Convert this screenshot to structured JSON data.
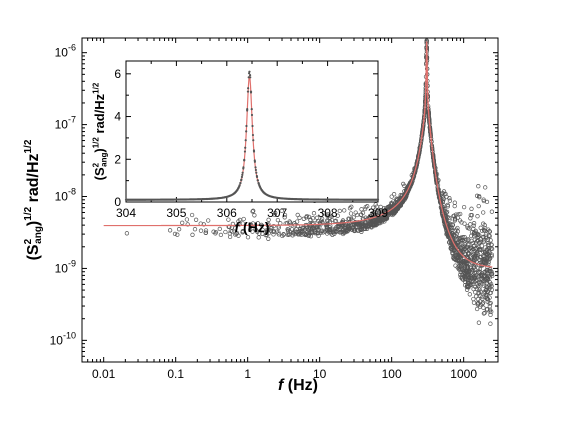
{
  "chart_data": [
    {
      "type": "scatter",
      "title": "",
      "xscale": "log",
      "yscale": "log",
      "xlim": [
        0.005,
        3000
      ],
      "ylim": [
        5e-11,
        1.6e-06
      ],
      "xlabel": {
        "italic": "f",
        "rest": " (Hz)"
      },
      "ylabel": {
        "base": "(S",
        "sup1": "2",
        "sub": "ang",
        "close": ")",
        "sup2": "1/2",
        "rest": " rad/Hz",
        "sup3": "1/2"
      },
      "xticks": [
        {
          "v": 0.01,
          "label": "0.01"
        },
        {
          "v": 0.1,
          "label": "0.1"
        },
        {
          "v": 1,
          "label": "1"
        },
        {
          "v": 10,
          "label": "10"
        },
        {
          "v": 100,
          "label": "100"
        },
        {
          "v": 1000,
          "label": "1000"
        }
      ],
      "yticks": [
        {
          "v": 1e-10,
          "mant": "10",
          "exp": "-10"
        },
        {
          "v": 1e-09,
          "mant": "10",
          "exp": "-9"
        },
        {
          "v": 1e-08,
          "mant": "10",
          "exp": "-8"
        },
        {
          "v": 1e-07,
          "mant": "10",
          "exp": "-7"
        },
        {
          "v": 1e-06,
          "mant": "10",
          "exp": "-6"
        }
      ],
      "series": [
        {
          "kind": "data",
          "marker": "open-circle",
          "color": "#555555",
          "noise_floor": 1.1e-09,
          "peak_f": 306.4,
          "peak_value": 1.35e-06,
          "f_range": [
            0.01,
            2500
          ]
        },
        {
          "kind": "fit",
          "line": "solid",
          "color": "#e0706c",
          "low_f_level": 1.6e-09,
          "high_f_level": 1e-09,
          "peak_f": 306.4,
          "peak_value": 1.3e-06
        }
      ]
    },
    {
      "type": "line",
      "title": "",
      "inset": true,
      "xlim": [
        304,
        309
      ],
      "ylim": [
        0,
        6.6
      ],
      "xlabel": {
        "italic": "f",
        "rest": " (Hz)"
      },
      "ylabel": {
        "base": "(S",
        "sup1": "2",
        "sub": "ang",
        "close": ")",
        "sup2": "1/2",
        "rest": " rad/Hz",
        "sup3": "1/2"
      },
      "xticks": [
        304,
        305,
        306,
        307,
        308,
        309
      ],
      "yticks": [
        0,
        2,
        4,
        6
      ],
      "series": [
        {
          "kind": "data",
          "marker": "filled-dot",
          "color": "#555555",
          "peak_f": 306.45,
          "peak_value": 6.0,
          "half_width_hz": 0.07,
          "background": 0.1
        },
        {
          "kind": "fit",
          "line": "solid",
          "color": "#e0706c",
          "peak_f": 306.45,
          "peak_value": 5.8
        }
      ]
    }
  ]
}
